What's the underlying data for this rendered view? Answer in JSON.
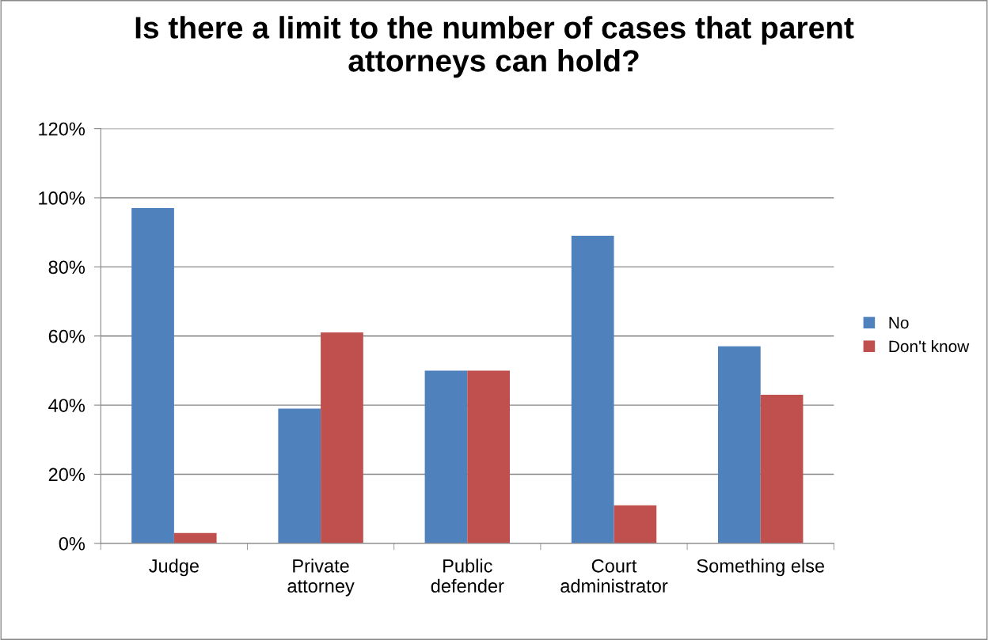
{
  "chart_data": {
    "type": "bar",
    "title": "Is there a limit to the number of cases that parent\nattorneys can hold?",
    "categories": [
      "Judge",
      "Private\nattorney",
      "Public\ndefender",
      "Court\nadministrator",
      "Something else"
    ],
    "series": [
      {
        "name": "No",
        "color": "#4f81bd",
        "values": [
          97,
          39,
          50,
          89,
          57
        ]
      },
      {
        "name": "Don't know",
        "color": "#c0504d",
        "values": [
          3,
          61,
          50,
          11,
          43
        ]
      }
    ],
    "ylim": [
      0,
      120
    ],
    "yticks": [
      {
        "value": 0,
        "label": "0%"
      },
      {
        "value": 20,
        "label": "20%"
      },
      {
        "value": 40,
        "label": "40%"
      },
      {
        "value": 60,
        "label": "60%"
      },
      {
        "value": 80,
        "label": "80%"
      },
      {
        "value": 100,
        "label": "100%"
      },
      {
        "value": 120,
        "label": "120%"
      }
    ],
    "grid": "y",
    "legend": "right"
  }
}
